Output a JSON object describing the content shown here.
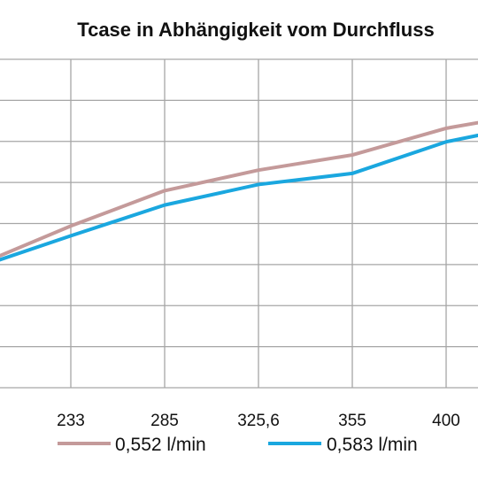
{
  "chart_data": {
    "type": "line",
    "title": "Tcase in Abhängigkeit vom Durchfluss",
    "xlabel": "",
    "ylabel": "",
    "categories": [
      "",
      "233",
      "285",
      "325,6",
      "355",
      "400",
      ""
    ],
    "series": [
      {
        "name": "0,552 l/min",
        "color": "#c49a9a",
        "values": [
          2.98,
          3.94,
          4.8,
          5.3,
          5.67,
          6.32,
          6.72
        ]
      },
      {
        "name": "0,583 l/min",
        "color": "#1aa7df",
        "values": [
          2.93,
          3.7,
          4.45,
          4.95,
          5.22,
          5.99,
          6.45
        ]
      }
    ],
    "ylim": [
      0,
      8
    ],
    "grid": true,
    "legend": "bottom"
  }
}
